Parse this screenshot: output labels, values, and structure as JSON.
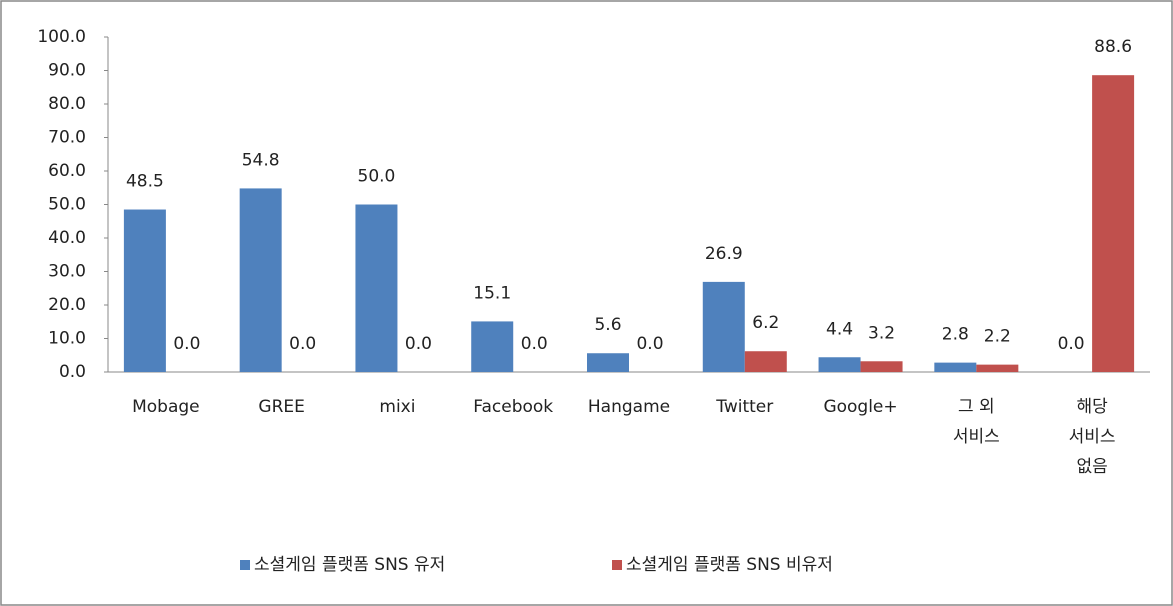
{
  "chart_data": {
    "type": "bar",
    "categories": [
      "Mobage",
      "GREE",
      "mixi",
      "Facebook",
      "Hangame",
      "Twitter",
      "Google+",
      "그 외\n서비스",
      "해당\n서비스\n없음"
    ],
    "series": [
      {
        "name": "소셜게임 플랫폼 SNS 유저",
        "color": "#4f81bd",
        "values": [
          48.5,
          54.8,
          50,
          15.1,
          5.6,
          26.9,
          4.4,
          2.8,
          0
        ],
        "value_labels": [
          "48.5",
          "54.8",
          "50.0",
          "15.1",
          "5.6",
          "26.9",
          "4.4",
          "2.8",
          "0.0"
        ]
      },
      {
        "name": "소셜게임 플랫폼 SNS 비유저",
        "color": "#c0504d",
        "values": [
          0,
          0,
          0,
          0,
          0,
          6.2,
          3.2,
          2.2,
          88.6
        ],
        "value_labels": [
          "0.0",
          "0.0",
          "0.0",
          "0.0",
          "0.0",
          "6.2",
          "3.2",
          "2.2",
          "88.6"
        ]
      }
    ],
    "ylim": [
      0,
      100
    ],
    "yticks": [
      {
        "value": 0,
        "label": "0.0"
      },
      {
        "value": 10,
        "label": "10.0"
      },
      {
        "value": 20,
        "label": "20.0"
      },
      {
        "value": 30,
        "label": "30.0"
      },
      {
        "value": 40,
        "label": "40.0"
      },
      {
        "value": 50,
        "label": "50.0"
      },
      {
        "value": 60,
        "label": "60.0"
      },
      {
        "value": 70,
        "label": "70.0"
      },
      {
        "value": 80,
        "label": "80.0"
      },
      {
        "value": 90,
        "label": "90.0"
      },
      {
        "value": 100,
        "label": "100.0"
      }
    ],
    "legend": "bottom"
  }
}
